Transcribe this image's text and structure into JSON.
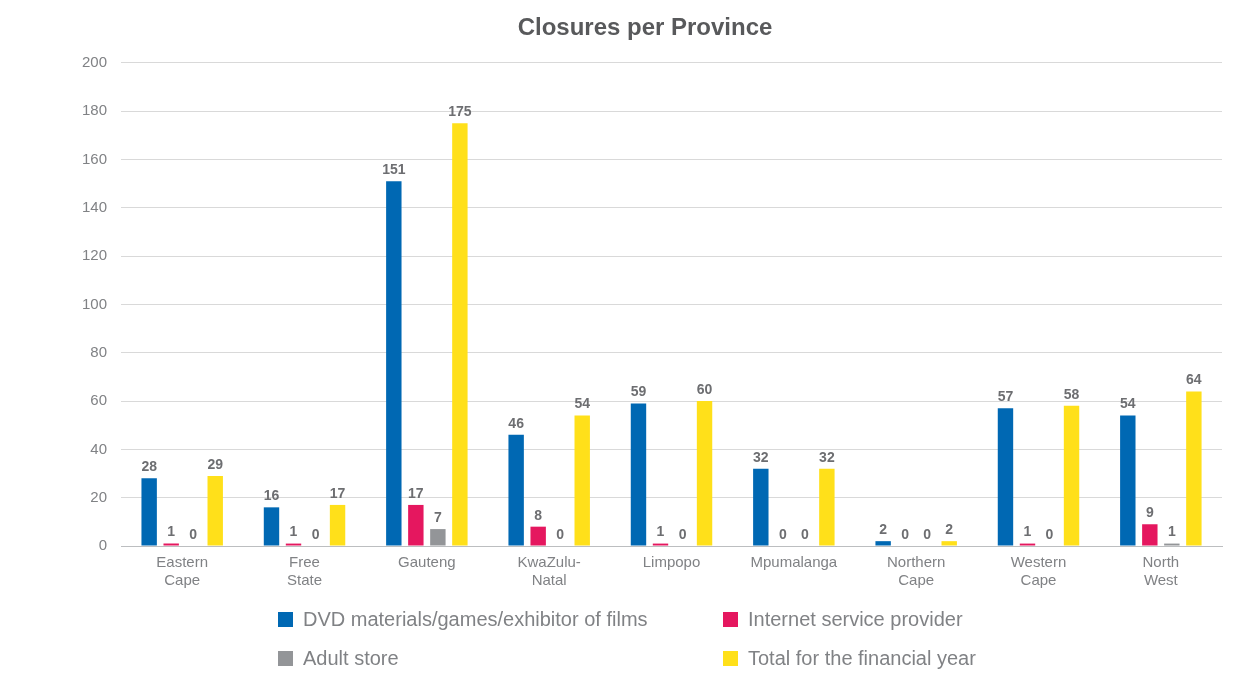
{
  "chart_data": {
    "type": "bar",
    "title": "Closures per Province",
    "categories": [
      "Eastern Cape",
      "Free State",
      "Gauteng",
      "KwaZulu-Natal",
      "Limpopo",
      "Mpumalanga",
      "Northern Cape",
      "Western Cape",
      "North West"
    ],
    "series": [
      {
        "name": "DVD materials/games/exhibitor of films",
        "color": "#0068b3",
        "values": [
          28,
          16,
          151,
          46,
          59,
          32,
          2,
          57,
          54
        ]
      },
      {
        "name": "Internet service provider",
        "color": "#e5175f",
        "values": [
          1,
          1,
          17,
          8,
          1,
          0,
          0,
          1,
          9
        ]
      },
      {
        "name": "Adult store",
        "color": "#939598",
        "values": [
          0,
          0,
          7,
          0,
          0,
          0,
          0,
          0,
          1
        ]
      },
      {
        "name": "Total for the financial year",
        "color": "#ffe01a",
        "values": [
          29,
          17,
          175,
          54,
          60,
          32,
          2,
          58,
          64
        ]
      }
    ],
    "ylim": [
      0,
      200
    ],
    "yticks": [
      0,
      20,
      40,
      60,
      80,
      100,
      120,
      140,
      160,
      180,
      200
    ],
    "grid": "y",
    "legend": "bottom",
    "data_labels": true
  }
}
